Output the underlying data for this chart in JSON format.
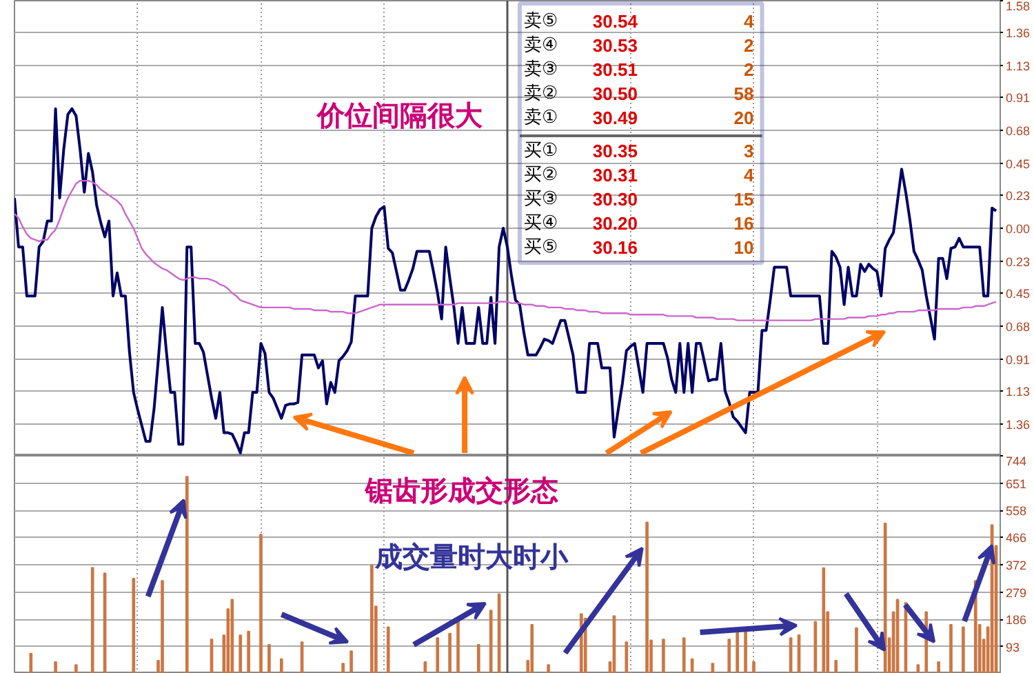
{
  "chart_data": [
    {
      "type": "line",
      "categories": [
        null,
        null,
        null,
        null,
        null,
        null,
        null,
        null,
        null,
        null,
        null,
        null,
        null,
        null,
        null,
        null,
        null,
        null,
        null,
        null,
        null,
        null,
        null,
        null,
        null,
        null,
        null,
        null,
        null,
        null,
        null,
        null,
        null,
        null,
        null,
        null,
        null,
        null,
        null,
        null,
        null,
        null,
        null,
        null,
        null,
        null,
        null,
        null,
        null,
        null,
        null,
        null,
        null,
        null,
        null,
        null,
        null,
        null,
        null,
        null,
        null,
        null,
        null,
        null,
        null,
        null,
        null,
        null,
        null,
        null,
        null,
        null,
        null,
        null,
        null,
        null,
        null,
        null,
        null,
        null,
        null,
        null,
        null,
        null,
        null,
        null,
        null,
        null,
        null,
        null,
        null,
        null,
        null,
        null,
        null,
        null,
        null,
        null,
        null,
        null,
        null,
        null,
        null,
        null,
        null,
        null,
        null,
        null,
        null,
        null,
        null,
        null,
        null,
        null,
        null,
        null,
        null,
        null,
        null,
        null,
        null,
        null,
        null,
        null,
        null,
        null,
        null,
        null,
        null,
        null,
        null,
        null,
        null,
        null,
        null,
        null,
        null,
        null,
        null,
        null,
        null,
        null,
        null,
        null,
        null,
        null,
        null,
        null,
        null,
        null,
        null,
        null,
        null,
        null,
        null,
        null,
        null,
        null,
        null,
        null,
        null,
        null,
        null,
        null,
        null,
        null,
        null,
        null,
        null,
        null,
        null,
        null,
        null,
        null,
        null,
        null,
        null,
        null,
        null,
        null,
        null,
        null,
        null,
        null,
        null,
        null,
        null,
        null,
        null,
        null,
        null,
        null,
        null,
        null,
        null,
        null,
        null,
        null,
        null,
        null,
        null,
        null,
        null,
        null,
        null,
        null,
        null,
        null,
        null,
        null,
        null,
        null,
        null,
        null,
        null,
        null,
        null,
        null,
        null,
        null,
        null,
        null,
        null,
        null,
        null,
        null,
        null,
        null,
        null,
        null,
        null,
        null,
        null,
        null,
        null,
        null,
        null,
        null,
        null,
        null,
        null
      ],
      "ylim": [
        -1.58,
        1.58
      ],
      "yticks": [
        {
          "value": 1.58,
          "label": "1.58"
        },
        {
          "value": 1.36,
          "label": "1.36"
        },
        {
          "value": 1.13,
          "label": "1.13"
        },
        {
          "value": 0.91,
          "label": "0.91"
        },
        {
          "value": 0.68,
          "label": "0.68"
        },
        {
          "value": 0.45,
          "label": "0.45"
        },
        {
          "value": 0.23,
          "label": "0.23"
        },
        {
          "value": 0,
          "label": "0.00"
        },
        {
          "value": -0.23,
          "label": "0.23"
        },
        {
          "value": -0.45,
          "label": "0.45"
        },
        {
          "value": -0.68,
          "label": "0.68"
        },
        {
          "value": -0.91,
          "label": "0.91"
        },
        {
          "value": -1.13,
          "label": "1.13"
        },
        {
          "value": -1.36,
          "label": "1.36"
        }
      ],
      "tick_labels": "y",
      "grid": true,
      "annotations": [
        "价位间隔很大"
      ],
      "series": [
        {
          "type": "line",
          "color": "#000066",
          "values": [
            0.21,
            -0.13,
            -0.13,
            -0.47,
            -0.47,
            -0.47,
            -0.13,
            -0.09,
            0.05,
            0.05,
            0.83,
            0.21,
            0.55,
            0.79,
            0.83,
            0.78,
            0.54,
            0.25,
            0.52,
            0.39,
            0.16,
            0.04,
            -0.06,
            0.05,
            -0.47,
            -0.31,
            -0.47,
            -0.47,
            -0.86,
            -1.14,
            -1.26,
            -1.37,
            -1.48,
            -1.48,
            -1.25,
            -0.92,
            -0.55,
            -0.86,
            -1.14,
            -1.14,
            -1.5,
            -1.5,
            -0.13,
            -0.13,
            -0.8,
            -0.8,
            -0.86,
            -1.02,
            -1.18,
            -1.32,
            -1.14,
            -1.42,
            -1.42,
            -1.43,
            -1.49,
            -1.56,
            -1.42,
            -1.42,
            -1.14,
            -1.14,
            -0.8,
            -0.87,
            -1.14,
            -1.18,
            -1.25,
            -1.32,
            -1.23,
            -1.22,
            -1.22,
            -1.21,
            -0.88,
            -0.88,
            -0.88,
            -0.88,
            -0.97,
            -0.92,
            -1.22,
            -1.07,
            -1.14,
            -0.92,
            -0.89,
            -0.85,
            -0.79,
            -0.47,
            -0.47,
            -0.47,
            -0.47,
            0,
            0.08,
            0.13,
            0.15,
            -0.14,
            -0.17,
            -0.3,
            -0.43,
            -0.43,
            -0.36,
            -0.28,
            -0.16,
            -0.16,
            -0.16,
            -0.16,
            -0.3,
            -0.45,
            -0.63,
            -0.13,
            -0.35,
            -0.55,
            -0.8,
            -0.55,
            -0.8,
            -0.8,
            -0.8,
            -0.55,
            -0.8,
            -0.8,
            -0.48,
            -0.8,
            -0.13,
            0,
            -0.13,
            -0.33,
            -0.5,
            -0.53,
            -0.72,
            -0.88,
            -0.88,
            -0.88,
            -0.83,
            -0.77,
            -0.78,
            -0.8,
            -0.72,
            -0.64,
            -0.64,
            -0.76,
            -0.88,
            -1.14,
            -1.14,
            -1.14,
            -0.8,
            -0.8,
            -0.8,
            -0.97,
            -0.97,
            -0.97,
            -1.45,
            -1.26,
            -1.08,
            -0.85,
            -0.82,
            -0.8,
            -0.97,
            -1.14,
            -0.8,
            -0.8,
            -0.8,
            -0.8,
            -0.8,
            -0.9,
            -1.05,
            -1.14,
            -0.8,
            -1.14,
            -0.8,
            -1.14,
            -0.8,
            -0.8,
            -0.93,
            -1.06,
            -1.05,
            -1.05,
            -0.8,
            -1.13,
            -1.21,
            -1.31,
            -1.34,
            -1.38,
            -1.42,
            -1.14,
            -1.14,
            -1.14,
            -0.71,
            -0.71,
            -0.5,
            -0.27,
            -0.27,
            -0.27,
            -0.27,
            -0.47,
            -0.47,
            -0.47,
            -0.47,
            -0.47,
            -0.47,
            -0.47,
            -0.47,
            -0.8,
            -0.8,
            -0.16,
            -0.2,
            -0.27,
            -0.53,
            -0.27,
            -0.47,
            -0.47,
            -0.25,
            -0.3,
            -0.25,
            -0.28,
            -0.3,
            -0.47,
            -0.14,
            -0.08,
            -0.03,
            0.19,
            0.41,
            0.25,
            0.06,
            -0.16,
            -0.22,
            -0.29,
            -0.47,
            -0.62,
            -0.77,
            -0.21,
            -0.21,
            -0.35,
            -0.14,
            -0.13,
            -0.07,
            -0.13,
            -0.13,
            -0.13,
            -0.13,
            -0.13,
            -0.47,
            -0.47,
            0.14,
            0.12,
            null
          ]
        },
        {
          "type": "line",
          "color": "#cc66cc",
          "values": [
            0.1,
            0.07,
            0.01,
            -0.04,
            -0.07,
            -0.08,
            -0.09,
            -0.08,
            -0.08,
            -0.04,
            -0.01,
            0.06,
            0.14,
            0.21,
            0.26,
            0.31,
            0.33,
            0.33,
            0.33,
            0.32,
            0.3,
            0.27,
            0.25,
            0.23,
            0.21,
            0.19,
            0.16,
            0.1,
            0.05,
            0,
            -0.07,
            -0.14,
            -0.18,
            -0.21,
            -0.24,
            -0.26,
            -0.28,
            -0.29,
            -0.31,
            -0.33,
            -0.35,
            -0.36,
            -0.35,
            -0.34,
            -0.34,
            -0.35,
            -0.35,
            -0.35,
            -0.36,
            -0.37,
            -0.39,
            -0.4,
            -0.42,
            -0.45,
            -0.47,
            -0.5,
            -0.51,
            -0.52,
            -0.53,
            -0.54,
            -0.55,
            -0.55,
            -0.55,
            -0.55,
            -0.55,
            -0.55,
            -0.55,
            -0.55,
            -0.56,
            -0.56,
            -0.56,
            -0.56,
            -0.56,
            -0.57,
            -0.57,
            -0.57,
            -0.57,
            -0.58,
            -0.58,
            -0.58,
            -0.58,
            -0.59,
            -0.59,
            -0.59,
            -0.58,
            -0.57,
            -0.56,
            -0.55,
            -0.54,
            -0.53,
            -0.53,
            -0.53,
            -0.53,
            -0.53,
            -0.53,
            -0.53,
            -0.53,
            -0.53,
            -0.53,
            -0.53,
            -0.53,
            -0.53,
            -0.53,
            -0.53,
            -0.53,
            -0.53,
            -0.53,
            -0.53,
            -0.52,
            -0.52,
            -0.52,
            -0.52,
            -0.52,
            -0.52,
            -0.52,
            -0.52,
            -0.52,
            -0.52,
            -0.51,
            -0.51,
            -0.51,
            -0.52,
            -0.52,
            -0.52,
            -0.53,
            -0.53,
            -0.53,
            -0.54,
            -0.54,
            -0.54,
            -0.55,
            -0.55,
            -0.55,
            -0.55,
            -0.56,
            -0.56,
            -0.56,
            -0.57,
            -0.57,
            -0.57,
            -0.58,
            -0.58,
            -0.58,
            -0.59,
            -0.59,
            -0.59,
            -0.59,
            -0.59,
            -0.59,
            -0.59,
            -0.6,
            -0.6,
            -0.6,
            -0.6,
            -0.6,
            -0.6,
            -0.6,
            -0.6,
            -0.6,
            -0.61,
            -0.61,
            -0.61,
            -0.61,
            -0.61,
            -0.61,
            -0.61,
            -0.62,
            -0.62,
            -0.62,
            -0.62,
            -0.62,
            -0.63,
            -0.63,
            -0.63,
            -0.63,
            -0.63,
            -0.64,
            -0.64,
            -0.64,
            -0.64,
            -0.64,
            -0.64,
            -0.64,
            -0.64,
            -0.64,
            -0.64,
            -0.64,
            -0.64,
            -0.64,
            -0.64,
            -0.64,
            -0.64,
            -0.64,
            -0.64,
            -0.64,
            -0.63,
            -0.63,
            -0.63,
            -0.63,
            -0.63,
            -0.63,
            -0.63,
            -0.63,
            -0.62,
            -0.62,
            -0.62,
            -0.62,
            -0.62,
            -0.61,
            -0.61,
            -0.61,
            -0.6,
            -0.6,
            -0.59,
            -0.59,
            -0.58,
            -0.58,
            -0.58,
            -0.58,
            -0.58,
            -0.57,
            -0.57,
            -0.57,
            -0.57,
            -0.57,
            -0.56,
            -0.56,
            -0.56,
            -0.56,
            -0.56,
            -0.56,
            -0.55,
            -0.55,
            -0.55,
            -0.54,
            -0.54,
            -0.54,
            -0.53,
            -0.52,
            -0.51,
            null
          ]
        }
      ]
    },
    {
      "type": "bar",
      "categories": [
        null,
        null,
        null,
        null,
        null,
        null,
        null,
        null,
        null,
        null,
        null,
        null,
        null,
        null,
        null,
        null,
        null,
        null,
        null,
        null,
        null,
        null,
        null,
        null,
        null,
        null,
        null,
        null,
        null,
        null,
        null,
        null,
        null,
        null,
        null,
        null,
        null,
        null,
        null,
        null,
        null,
        null,
        null,
        null,
        null,
        null,
        null,
        null,
        null,
        null,
        null,
        null,
        null,
        null,
        null,
        null,
        null,
        null,
        null,
        null,
        null,
        null,
        null,
        null,
        null,
        null,
        null,
        null,
        null,
        null,
        null,
        null,
        null,
        null,
        null,
        null,
        null,
        null,
        null,
        null,
        null,
        null,
        null,
        null,
        null,
        null,
        null,
        null,
        null,
        null,
        null,
        null,
        null,
        null,
        null,
        null,
        null,
        null,
        null,
        null,
        null,
        null,
        null,
        null,
        null,
        null,
        null,
        null,
        null,
        null,
        null,
        null,
        null,
        null,
        null,
        null,
        null,
        null,
        null,
        null,
        null,
        null,
        null,
        null,
        null,
        null,
        null,
        null,
        null,
        null,
        null,
        null,
        null,
        null,
        null,
        null,
        null,
        null,
        null,
        null,
        null,
        null,
        null,
        null,
        null,
        null,
        null,
        null,
        null,
        null,
        null,
        null,
        null,
        null,
        null,
        null,
        null,
        null,
        null,
        null,
        null,
        null,
        null,
        null,
        null,
        null,
        null,
        null,
        null,
        null,
        null,
        null,
        null,
        null,
        null,
        null,
        null,
        null,
        null,
        null,
        null,
        null,
        null,
        null,
        null,
        null,
        null,
        null,
        null,
        null,
        null,
        null,
        null,
        null,
        null,
        null,
        null,
        null,
        null,
        null,
        null,
        null,
        null,
        null,
        null,
        null,
        null,
        null,
        null,
        null,
        null,
        null,
        null,
        null,
        null,
        null,
        null,
        null,
        null,
        null,
        null,
        null,
        null,
        null,
        null,
        null,
        null,
        null,
        null,
        null,
        null,
        null,
        null,
        null,
        null,
        null,
        null,
        null,
        null,
        null,
        null
      ],
      "ylim": [
        0,
        744
      ],
      "yticks": [
        93,
        186,
        279,
        372,
        466,
        558,
        651,
        744
      ],
      "tick_labels": "y",
      "grid": true,
      "annotations": [
        "锯齿形成交形态",
        "成交量时大时小"
      ],
      "series": [
        {
          "type": "bar",
          "color": "#cc7744",
          "values": [
            null,
            null,
            null,
            null,
            69,
            null,
            null,
            null,
            null,
            null,
            40,
            null,
            null,
            null,
            null,
            30,
            null,
            null,
            null,
            362,
            null,
            null,
            343,
            null,
            null,
            null,
            null,
            null,
            null,
            325,
            null,
            null,
            null,
            null,
            null,
            45,
            317,
            null,
            null,
            null,
            null,
            null,
            673,
            null,
            null,
            null,
            null,
            null,
            117,
            null,
            null,
            131,
            221,
            253,
            null,
            131,
            null,
            144,
            null,
            null,
            475,
            null,
            99,
            null,
            null,
            50,
            null,
            null,
            null,
            null,
            108,
            null,
            null,
            null,
            null,
            null,
            null,
            null,
            null,
            null,
            35,
            null,
            77,
            null,
            null,
            null,
            null,
            370,
            230,
            null,
            null,
            159,
            null,
            null,
            null,
            null,
            null,
            null,
            null,
            null,
            40,
            null,
            null,
            122,
            null,
            null,
            137,
            null,
            186,
            null,
            null,
            null,
            null,
            99,
            null,
            null,
            216,
            null,
            272,
            null,
            null,
            null,
            null,
            null,
            null,
            45,
            167,
            null,
            null,
            null,
            30,
            null,
            null,
            null,
            null,
            null,
            null,
            null,
            204,
            189,
            null,
            null,
            null,
            null,
            null,
            40,
            197,
            null,
            null,
            108,
            null,
            null,
            null,
            null,
            517,
            114,
            null,
            null,
            117,
            null,
            null,
            null,
            null,
            122,
            null,
            50,
            null,
            null,
            null,
            null,
            35,
            null,
            null,
            null,
            117,
            null,
            152,
            null,
            152,
            null,
            40,
            null,
            null,
            null,
            null,
            null,
            null,
            null,
            null,
            122,
            null,
            132,
            null,
            null,
            null,
            177,
            null,
            361,
            211,
            null,
            45,
            null,
            null,
            null,
            null,
            156,
            null,
            null,
            null,
            null,
            null,
            null,
            513,
            122,
            211,
            253,
            null,
            242,
            null,
            null,
            30,
            null,
            211,
            null,
            null,
            40,
            null,
            null,
            167,
            null,
            null,
            159,
            null,
            null,
            317,
            167,
            117,
            159,
            508,
            437,
            null
          ]
        }
      ]
    },
    {
      "type": "other",
      "categories": [
        "卖⑤",
        "卖④",
        "卖③",
        "卖②",
        "卖①",
        "买①",
        "买②",
        "买③",
        "买④",
        "买⑤"
      ],
      "series": [
        {
          "color": "#dd0000",
          "values": [
            30.54,
            30.53,
            30.51,
            30.5,
            30.49,
            30.35,
            30.31,
            30.3,
            30.2,
            30.16
          ],
          "value_labels": [
            "30.54",
            "30.53",
            "30.51",
            "30.50",
            "30.49",
            "30.35",
            "30.31",
            "30.30",
            "30.20",
            "30.16"
          ]
        },
        {
          "color": "#cc5500",
          "values": [
            4,
            2,
            2,
            58,
            20,
            3,
            4,
            15,
            16,
            10
          ],
          "value_labels": [
            "4",
            "2",
            "2",
            "58",
            "20",
            "3",
            "4",
            "15",
            "16",
            "10"
          ]
        }
      ]
    }
  ]
}
